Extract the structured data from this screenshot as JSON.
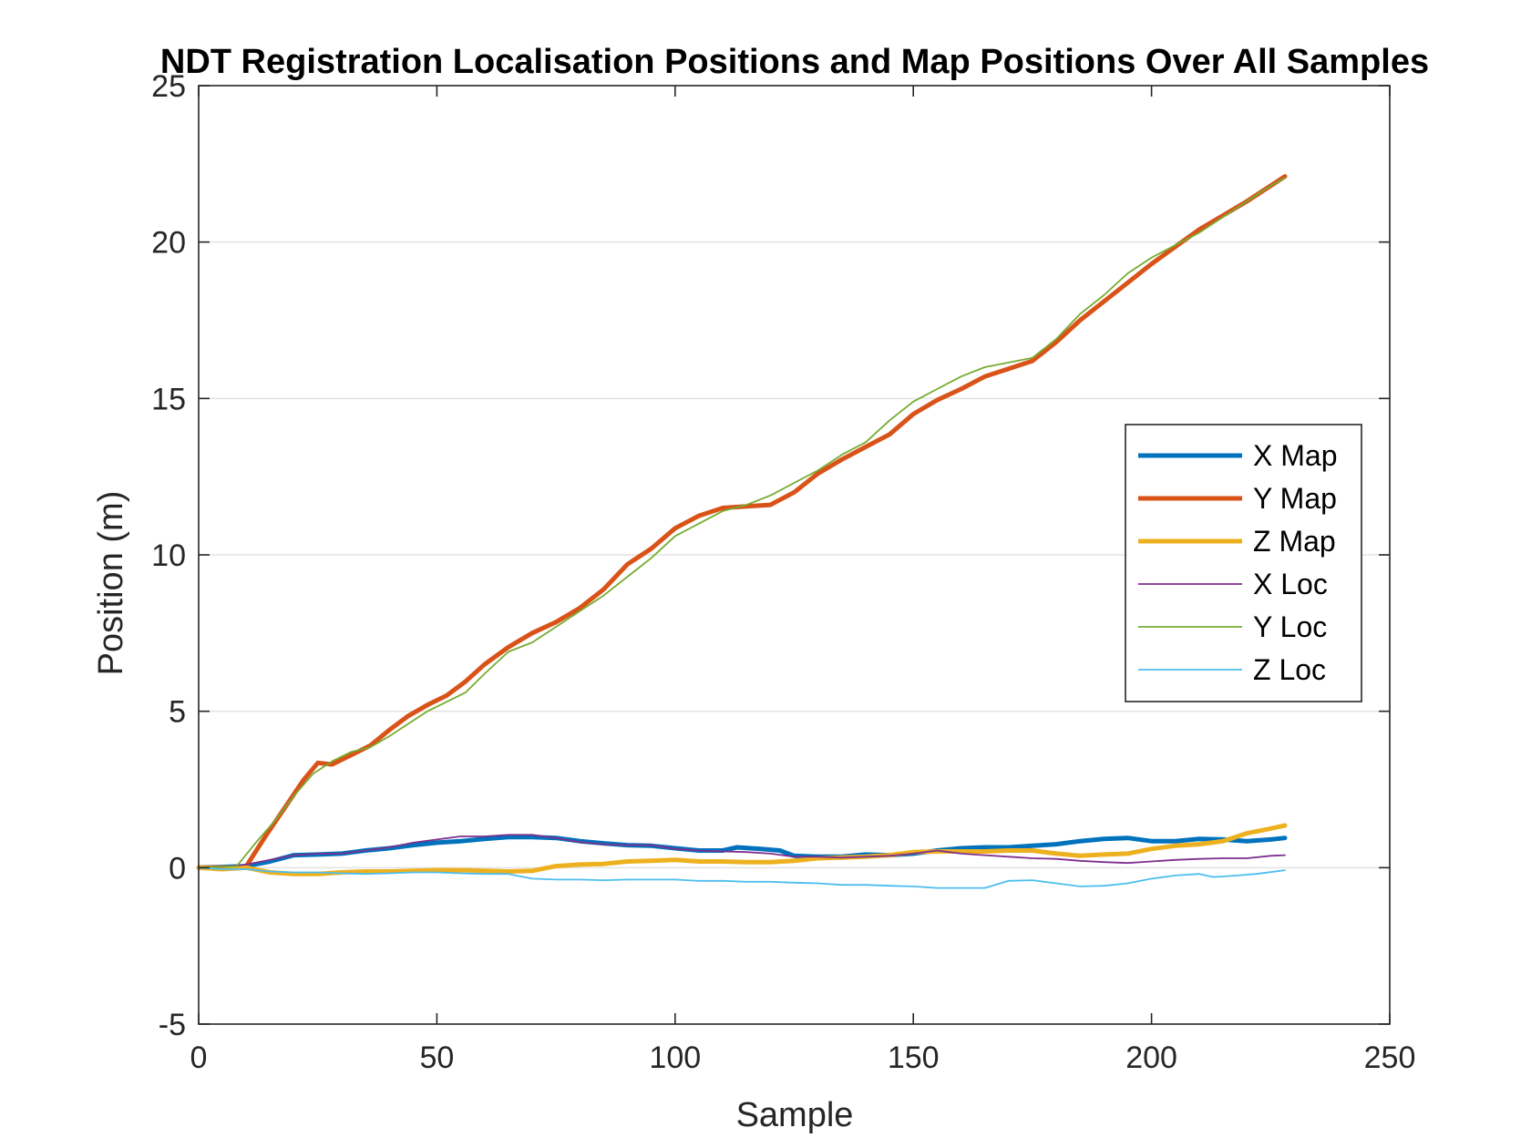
{
  "chart_data": {
    "type": "line",
    "title": "NDT Registration Localisation Positions and Map Positions Over All Samples",
    "xlabel": "Sample",
    "ylabel": "Position (m)",
    "xlim": [
      0,
      250
    ],
    "ylim": [
      -5,
      25
    ],
    "xticks": [
      0,
      50,
      100,
      150,
      200,
      250
    ],
    "yticks": [
      -5,
      0,
      5,
      10,
      15,
      20,
      25
    ],
    "grid": "y-major",
    "legend_position": "right-middle",
    "series": [
      {
        "name": "X Map",
        "color": "#0072BD",
        "line_width": "thick",
        "points": [
          [
            0,
            0
          ],
          [
            5,
            0.02
          ],
          [
            10,
            0.05
          ],
          [
            15,
            0.2
          ],
          [
            20,
            0.4
          ],
          [
            25,
            0.42
          ],
          [
            30,
            0.45
          ],
          [
            35,
            0.55
          ],
          [
            40,
            0.62
          ],
          [
            45,
            0.72
          ],
          [
            50,
            0.8
          ],
          [
            55,
            0.85
          ],
          [
            60,
            0.92
          ],
          [
            65,
            0.98
          ],
          [
            70,
            0.98
          ],
          [
            75,
            0.95
          ],
          [
            80,
            0.85
          ],
          [
            85,
            0.78
          ],
          [
            90,
            0.72
          ],
          [
            95,
            0.7
          ],
          [
            100,
            0.62
          ],
          [
            105,
            0.55
          ],
          [
            110,
            0.55
          ],
          [
            113,
            0.65
          ],
          [
            118,
            0.6
          ],
          [
            122,
            0.55
          ],
          [
            125,
            0.38
          ],
          [
            130,
            0.35
          ],
          [
            135,
            0.35
          ],
          [
            140,
            0.42
          ],
          [
            145,
            0.4
          ],
          [
            150,
            0.45
          ],
          [
            155,
            0.55
          ],
          [
            160,
            0.62
          ],
          [
            165,
            0.65
          ],
          [
            170,
            0.65
          ],
          [
            175,
            0.7
          ],
          [
            180,
            0.75
          ],
          [
            185,
            0.85
          ],
          [
            190,
            0.92
          ],
          [
            195,
            0.95
          ],
          [
            200,
            0.85
          ],
          [
            205,
            0.85
          ],
          [
            210,
            0.92
          ],
          [
            215,
            0.9
          ],
          [
            220,
            0.85
          ],
          [
            225,
            0.9
          ],
          [
            228,
            0.95
          ]
        ]
      },
      {
        "name": "Y Map",
        "color": "#D95319",
        "line_width": "thick",
        "points": [
          [
            0,
            0
          ],
          [
            8,
            0
          ],
          [
            10,
            0.05
          ],
          [
            14,
            1.0
          ],
          [
            18,
            1.9
          ],
          [
            22,
            2.8
          ],
          [
            25,
            3.35
          ],
          [
            28,
            3.3
          ],
          [
            32,
            3.6
          ],
          [
            36,
            3.9
          ],
          [
            40,
            4.4
          ],
          [
            44,
            4.85
          ],
          [
            48,
            5.2
          ],
          [
            52,
            5.5
          ],
          [
            56,
            5.95
          ],
          [
            60,
            6.5
          ],
          [
            65,
            7.05
          ],
          [
            70,
            7.5
          ],
          [
            75,
            7.85
          ],
          [
            80,
            8.3
          ],
          [
            85,
            8.9
          ],
          [
            90,
            9.7
          ],
          [
            95,
            10.2
          ],
          [
            100,
            10.85
          ],
          [
            105,
            11.25
          ],
          [
            110,
            11.5
          ],
          [
            115,
            11.55
          ],
          [
            120,
            11.6
          ],
          [
            125,
            12.0
          ],
          [
            130,
            12.6
          ],
          [
            135,
            13.05
          ],
          [
            140,
            13.45
          ],
          [
            145,
            13.85
          ],
          [
            150,
            14.5
          ],
          [
            155,
            14.95
          ],
          [
            160,
            15.3
          ],
          [
            165,
            15.7
          ],
          [
            170,
            15.95
          ],
          [
            175,
            16.2
          ],
          [
            180,
            16.8
          ],
          [
            185,
            17.5
          ],
          [
            190,
            18.1
          ],
          [
            195,
            18.7
          ],
          [
            200,
            19.3
          ],
          [
            205,
            19.85
          ],
          [
            210,
            20.4
          ],
          [
            215,
            20.85
          ],
          [
            220,
            21.3
          ],
          [
            225,
            21.8
          ],
          [
            228,
            22.1
          ]
        ]
      },
      {
        "name": "Z Map",
        "color": "#EDB120",
        "line_width": "thick",
        "points": [
          [
            0,
            0
          ],
          [
            5,
            -0.05
          ],
          [
            10,
            0
          ],
          [
            15,
            -0.15
          ],
          [
            20,
            -0.2
          ],
          [
            25,
            -0.2
          ],
          [
            30,
            -0.15
          ],
          [
            35,
            -0.12
          ],
          [
            40,
            -0.12
          ],
          [
            45,
            -0.1
          ],
          [
            50,
            -0.08
          ],
          [
            55,
            -0.08
          ],
          [
            60,
            -0.1
          ],
          [
            65,
            -0.12
          ],
          [
            70,
            -0.1
          ],
          [
            75,
            0.05
          ],
          [
            80,
            0.1
          ],
          [
            85,
            0.12
          ],
          [
            90,
            0.2
          ],
          [
            95,
            0.22
          ],
          [
            100,
            0.25
          ],
          [
            105,
            0.2
          ],
          [
            110,
            0.2
          ],
          [
            115,
            0.18
          ],
          [
            120,
            0.18
          ],
          [
            125,
            0.22
          ],
          [
            130,
            0.3
          ],
          [
            135,
            0.32
          ],
          [
            140,
            0.35
          ],
          [
            145,
            0.4
          ],
          [
            150,
            0.5
          ],
          [
            155,
            0.52
          ],
          [
            160,
            0.52
          ],
          [
            165,
            0.52
          ],
          [
            170,
            0.55
          ],
          [
            175,
            0.55
          ],
          [
            180,
            0.45
          ],
          [
            185,
            0.38
          ],
          [
            190,
            0.42
          ],
          [
            195,
            0.45
          ],
          [
            200,
            0.6
          ],
          [
            205,
            0.7
          ],
          [
            210,
            0.75
          ],
          [
            215,
            0.85
          ],
          [
            220,
            1.1
          ],
          [
            225,
            1.25
          ],
          [
            228,
            1.35
          ]
        ]
      },
      {
        "name": "X Loc",
        "color": "#7E2F8E",
        "line_width": "thin",
        "points": [
          [
            0,
            0
          ],
          [
            5,
            0.02
          ],
          [
            10,
            0.1
          ],
          [
            15,
            0.25
          ],
          [
            20,
            0.4
          ],
          [
            25,
            0.45
          ],
          [
            30,
            0.45
          ],
          [
            35,
            0.55
          ],
          [
            40,
            0.65
          ],
          [
            45,
            0.8
          ],
          [
            50,
            0.9
          ],
          [
            55,
            1.0
          ],
          [
            60,
            1.0
          ],
          [
            65,
            1.05
          ],
          [
            70,
            1.05
          ],
          [
            75,
            0.95
          ],
          [
            80,
            0.82
          ],
          [
            85,
            0.75
          ],
          [
            90,
            0.72
          ],
          [
            95,
            0.72
          ],
          [
            100,
            0.6
          ],
          [
            105,
            0.55
          ],
          [
            110,
            0.52
          ],
          [
            115,
            0.5
          ],
          [
            120,
            0.45
          ],
          [
            125,
            0.35
          ],
          [
            130,
            0.35
          ],
          [
            135,
            0.32
          ],
          [
            140,
            0.35
          ],
          [
            145,
            0.38
          ],
          [
            150,
            0.45
          ],
          [
            155,
            0.55
          ],
          [
            160,
            0.45
          ],
          [
            165,
            0.4
          ],
          [
            170,
            0.35
          ],
          [
            175,
            0.3
          ],
          [
            180,
            0.28
          ],
          [
            185,
            0.22
          ],
          [
            190,
            0.18
          ],
          [
            195,
            0.15
          ],
          [
            200,
            0.2
          ],
          [
            205,
            0.25
          ],
          [
            210,
            0.28
          ],
          [
            215,
            0.3
          ],
          [
            220,
            0.3
          ],
          [
            225,
            0.38
          ],
          [
            228,
            0.4
          ]
        ]
      },
      {
        "name": "Y Loc",
        "color": "#77AC30",
        "line_width": "thin",
        "points": [
          [
            0,
            0
          ],
          [
            8,
            0.05
          ],
          [
            12,
            0.8
          ],
          [
            16,
            1.5
          ],
          [
            20,
            2.3
          ],
          [
            24,
            3.0
          ],
          [
            28,
            3.4
          ],
          [
            32,
            3.7
          ],
          [
            36,
            3.85
          ],
          [
            40,
            4.2
          ],
          [
            44,
            4.6
          ],
          [
            48,
            5.0
          ],
          [
            52,
            5.3
          ],
          [
            56,
            5.6
          ],
          [
            60,
            6.2
          ],
          [
            65,
            6.9
          ],
          [
            70,
            7.2
          ],
          [
            75,
            7.7
          ],
          [
            80,
            8.2
          ],
          [
            85,
            8.7
          ],
          [
            90,
            9.3
          ],
          [
            95,
            9.9
          ],
          [
            100,
            10.6
          ],
          [
            105,
            11.0
          ],
          [
            110,
            11.4
          ],
          [
            115,
            11.6
          ],
          [
            120,
            11.9
          ],
          [
            125,
            12.3
          ],
          [
            130,
            12.7
          ],
          [
            135,
            13.2
          ],
          [
            140,
            13.6
          ],
          [
            145,
            14.3
          ],
          [
            150,
            14.9
          ],
          [
            155,
            15.3
          ],
          [
            160,
            15.7
          ],
          [
            165,
            16.0
          ],
          [
            170,
            16.15
          ],
          [
            175,
            16.3
          ],
          [
            180,
            16.9
          ],
          [
            185,
            17.7
          ],
          [
            190,
            18.3
          ],
          [
            195,
            19.0
          ],
          [
            200,
            19.5
          ],
          [
            205,
            19.9
          ],
          [
            210,
            20.3
          ],
          [
            215,
            20.8
          ],
          [
            220,
            21.3
          ],
          [
            225,
            21.8
          ],
          [
            228,
            22.05
          ]
        ]
      },
      {
        "name": "Z Loc",
        "color": "#4DBEEE",
        "line_width": "thin",
        "points": [
          [
            0,
            0
          ],
          [
            5,
            -0.05
          ],
          [
            10,
            -0.05
          ],
          [
            15,
            -0.12
          ],
          [
            20,
            -0.15
          ],
          [
            25,
            -0.15
          ],
          [
            30,
            -0.18
          ],
          [
            35,
            -0.2
          ],
          [
            40,
            -0.18
          ],
          [
            45,
            -0.15
          ],
          [
            50,
            -0.15
          ],
          [
            55,
            -0.18
          ],
          [
            60,
            -0.2
          ],
          [
            65,
            -0.2
          ],
          [
            70,
            -0.35
          ],
          [
            75,
            -0.38
          ],
          [
            80,
            -0.38
          ],
          [
            85,
            -0.4
          ],
          [
            90,
            -0.38
          ],
          [
            95,
            -0.38
          ],
          [
            100,
            -0.38
          ],
          [
            105,
            -0.42
          ],
          [
            110,
            -0.42
          ],
          [
            115,
            -0.45
          ],
          [
            120,
            -0.45
          ],
          [
            125,
            -0.48
          ],
          [
            130,
            -0.5
          ],
          [
            135,
            -0.55
          ],
          [
            140,
            -0.55
          ],
          [
            145,
            -0.58
          ],
          [
            150,
            -0.6
          ],
          [
            155,
            -0.65
          ],
          [
            160,
            -0.65
          ],
          [
            165,
            -0.65
          ],
          [
            170,
            -0.42
          ],
          [
            175,
            -0.4
          ],
          [
            180,
            -0.5
          ],
          [
            185,
            -0.6
          ],
          [
            190,
            -0.58
          ],
          [
            195,
            -0.5
          ],
          [
            200,
            -0.35
          ],
          [
            205,
            -0.25
          ],
          [
            210,
            -0.2
          ],
          [
            213,
            -0.3
          ],
          [
            218,
            -0.25
          ],
          [
            222,
            -0.2
          ],
          [
            228,
            -0.08
          ]
        ]
      }
    ]
  }
}
